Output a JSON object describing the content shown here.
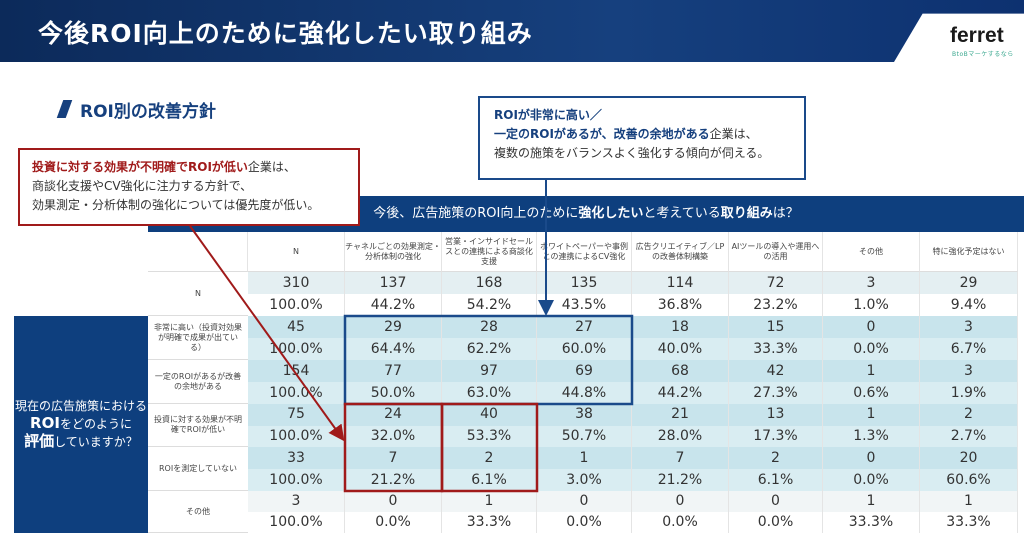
{
  "header": {
    "title": "今後ROI向上のために強化したい取り組み",
    "logo": "ferret",
    "logo_tagline": "BtoBマーケするなら"
  },
  "subtitle": "ROI別の改善方針",
  "red_callout": {
    "emphasis": "投資に対する効果が不明確でROIが低い",
    "line1_rest": "企業は、",
    "line2": "商談化支援やCV強化に注力する方針で、",
    "line3": "効果測定・分析体制の強化については優先度が低い。"
  },
  "blue_callout": {
    "line1": "ROIが非常に高い／",
    "line2_em": "一定のROIがあるが、改善の余地がある",
    "line2_rest": "企業は、",
    "line3": "複数の施策をバランスよく強化する傾向が伺える。"
  },
  "table": {
    "question_pre": "今後、広告施策のROI向上のために",
    "question_em1": "強化したい",
    "question_mid": "と考えている",
    "question_em2": "取り組み",
    "question_post": "は？",
    "left_label": {
      "l1": "現在の広告施策における",
      "l2": "ROI",
      "l2b": "をどのように",
      "l3": "評価",
      "l3b": "していますか？"
    },
    "columns": [
      "N",
      "チャネルごとの効果測定・分析体制の強化",
      "営業・インサイドセールスとの連携による商談化支援",
      "ホワイトペーパーや事例との連携によるCV強化",
      "広告クリエイティブ／LPの改善体制構築",
      "AIツールの導入や運用への活用",
      "その他",
      "特に強化予定はない"
    ],
    "rows": [
      {
        "label": "N",
        "counts": [
          "310",
          "137",
          "168",
          "135",
          "114",
          "72",
          "3",
          "29"
        ],
        "pcts": [
          "100.0%",
          "44.2%",
          "54.2%",
          "43.5%",
          "36.8%",
          "23.2%",
          "1.0%",
          "9.4%"
        ]
      },
      {
        "label": "非常に高い（投資対効果が明確で成果が出ている）",
        "counts": [
          "45",
          "29",
          "28",
          "27",
          "18",
          "15",
          "0",
          "3"
        ],
        "pcts": [
          "100.0%",
          "64.4%",
          "62.2%",
          "60.0%",
          "40.0%",
          "33.3%",
          "0.0%",
          "6.7%"
        ]
      },
      {
        "label": "一定のROIがあるが改善の余地がある",
        "counts": [
          "154",
          "77",
          "97",
          "69",
          "68",
          "42",
          "1",
          "3"
        ],
        "pcts": [
          "100.0%",
          "50.0%",
          "63.0%",
          "44.8%",
          "44.2%",
          "27.3%",
          "0.6%",
          "1.9%"
        ]
      },
      {
        "label": "投資に対する効果が不明確でROIが低い",
        "counts": [
          "75",
          "24",
          "40",
          "38",
          "21",
          "13",
          "1",
          "2"
        ],
        "pcts": [
          "100.0%",
          "32.0%",
          "53.3%",
          "50.7%",
          "28.0%",
          "17.3%",
          "1.3%",
          "2.7%"
        ]
      },
      {
        "label": "ROIを測定していない",
        "counts": [
          "33",
          "7",
          "2",
          "1",
          "7",
          "2",
          "0",
          "20"
        ],
        "pcts": [
          "100.0%",
          "21.2%",
          "6.1%",
          "3.0%",
          "21.2%",
          "6.1%",
          "0.0%",
          "60.6%"
        ]
      },
      {
        "label": "その他",
        "counts": [
          "3",
          "0",
          "1",
          "0",
          "0",
          "0",
          "1",
          "1"
        ],
        "pcts": [
          "100.0%",
          "0.0%",
          "33.3%",
          "0.0%",
          "0.0%",
          "0.0%",
          "33.3%",
          "33.3%"
        ]
      }
    ]
  },
  "colors": {
    "navy": "#0e3f7e",
    "red": "#a01a1a",
    "teal_light": "#d3eaf0",
    "teal_dark": "#c3e1e9"
  }
}
